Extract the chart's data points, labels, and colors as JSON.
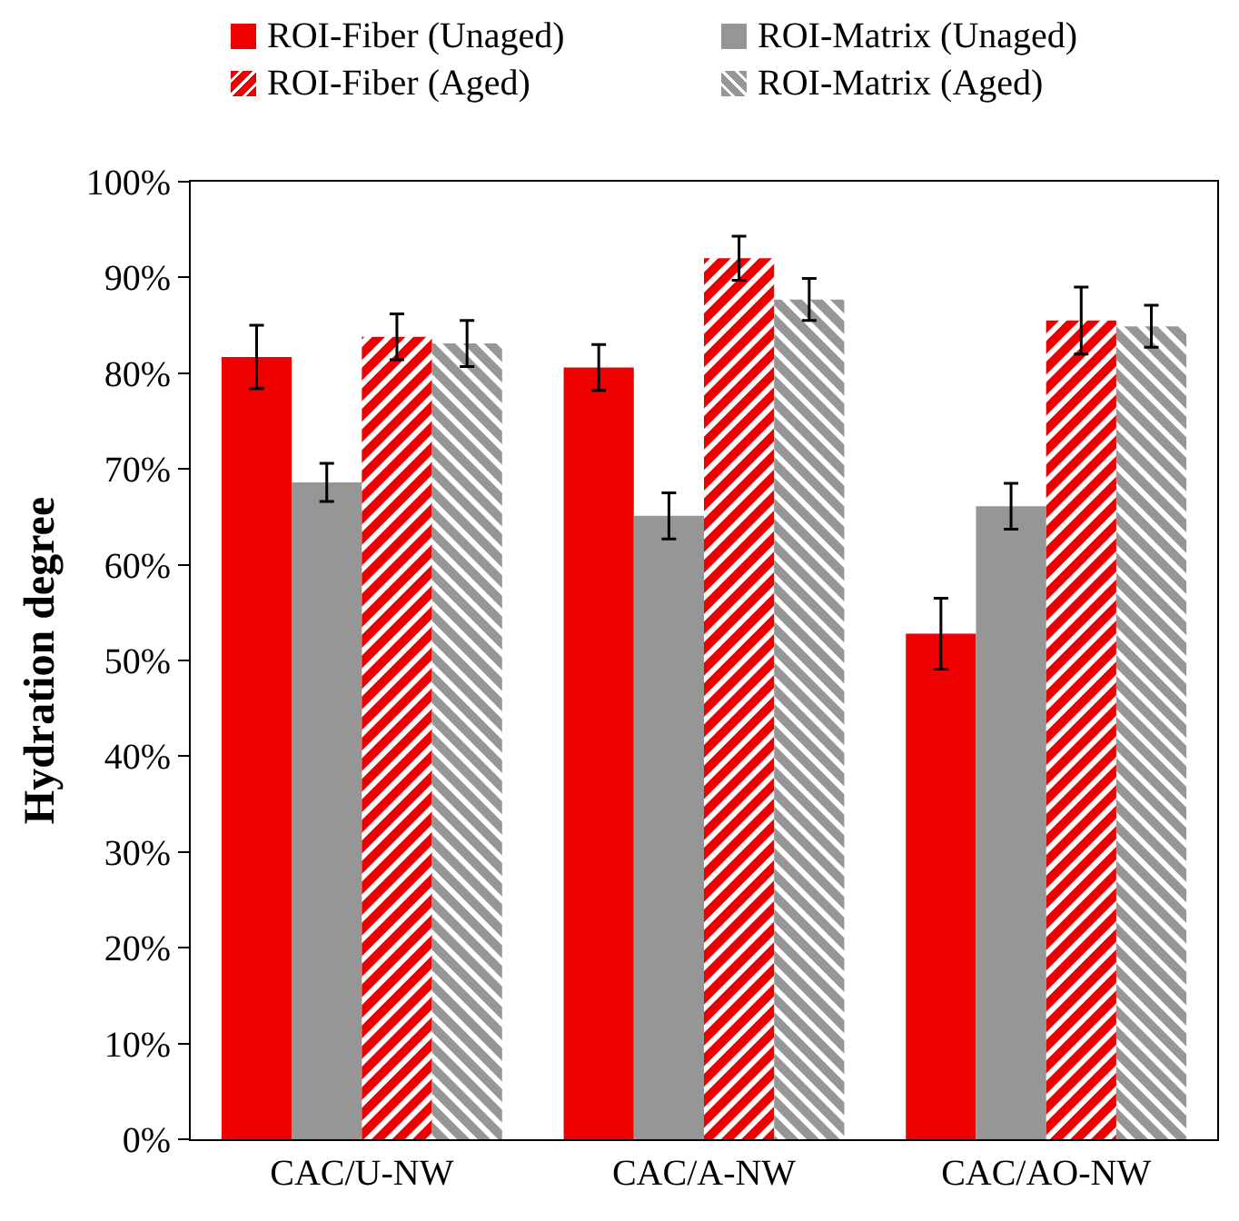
{
  "chart_data": {
    "type": "bar",
    "ylabel": "Hydration degree",
    "categories": [
      "CAC/U-NW",
      "CAC/A-NW",
      "CAC/AO-NW"
    ],
    "series": [
      {
        "name": "ROI-Fiber (Unaged)",
        "color": "#ee0000",
        "values": [
          81.7,
          80.6,
          52.8
        ],
        "errors": [
          3.3,
          2.4,
          3.7
        ]
      },
      {
        "name": "ROI-Matrix (Unaged)",
        "color": "#969696",
        "values": [
          68.6,
          65.1,
          66.1
        ],
        "errors": [
          2,
          2.4,
          2.4
        ]
      },
      {
        "name": "ROI-Fiber (Aged)",
        "color": "#ee0000",
        "values": [
          83.8,
          92,
          85.5
        ],
        "errors": [
          2.4,
          2.3,
          3.5
        ]
      },
      {
        "name": "ROI-Matrix (Aged)",
        "color": "#969696",
        "values": [
          83.1,
          87.7,
          84.9
        ],
        "errors": [
          2.4,
          2.2,
          2.2
        ]
      }
    ],
    "ylim": [
      0,
      100
    ],
    "yticks": [
      {
        "value": 0,
        "label": "0%"
      },
      {
        "value": 10,
        "label": "10%"
      },
      {
        "value": 20,
        "label": "20%"
      },
      {
        "value": 30,
        "label": "30%"
      },
      {
        "value": 40,
        "label": "40%"
      },
      {
        "value": 50,
        "label": "50%"
      },
      {
        "value": 60,
        "label": "60%"
      },
      {
        "value": 70,
        "label": "70%"
      },
      {
        "value": 80,
        "label": "80%"
      },
      {
        "value": 90,
        "label": "90%"
      },
      {
        "value": 100,
        "label": "100%"
      }
    ],
    "grid": false,
    "legend": "top"
  }
}
